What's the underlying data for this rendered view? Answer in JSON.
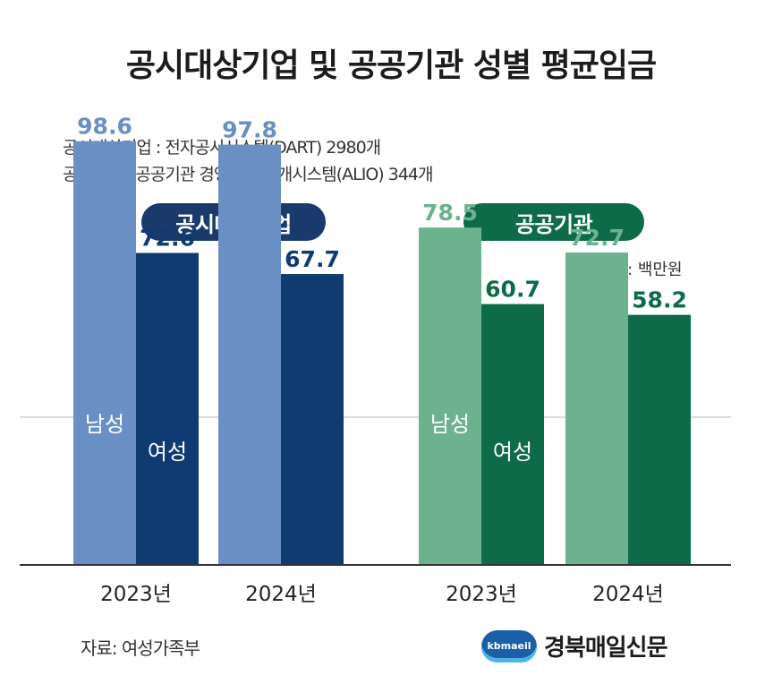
{
  "title": "공시대상기업 및 공공기관 성별 평균임금",
  "notes": [
    "공시대상기업 : 전자공시시스템(DART) 2980개",
    "공공기관 : 공공기관 경영정보 공개시스템(ALIO) 344개"
  ],
  "unit": "단위: 백만원",
  "source": "자료: 여성가족부",
  "logo": {
    "badge": "kbmaeil",
    "text": "경북매일신문"
  },
  "colors": {
    "corp_male": "#6a8fc4",
    "corp_female": "#0f3a72",
    "corp_pill": "#1a3a6b",
    "pub_male": "#6db28e",
    "pub_female": "#0d6b4a",
    "pub_pill": "#0d6b4a"
  },
  "chart_data": {
    "type": "bar",
    "ylim": [
      0,
      100
    ],
    "groups": [
      {
        "name": "공시대상기업",
        "categories": [
          "2023년",
          "2024년"
        ],
        "series": [
          {
            "name": "남성",
            "values": [
              98.6,
              97.8
            ]
          },
          {
            "name": "여성",
            "values": [
              72.6,
              67.7
            ]
          }
        ]
      },
      {
        "name": "공공기관",
        "categories": [
          "2023년",
          "2024년"
        ],
        "series": [
          {
            "name": "남성",
            "values": [
              78.5,
              72.7
            ]
          },
          {
            "name": "여성",
            "values": [
              60.7,
              58.2
            ]
          }
        ]
      }
    ]
  }
}
